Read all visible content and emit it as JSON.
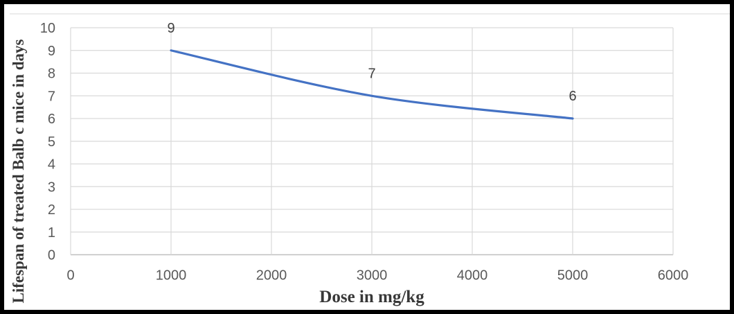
{
  "chart_data": {
    "type": "line",
    "title": "",
    "xlabel": "Dose in mg/kg",
    "ylabel": "Lifespan of treated Balb c mice in days",
    "x": [
      1000,
      3000,
      5000
    ],
    "values": [
      9,
      7,
      6
    ],
    "point_labels": [
      "9",
      "7",
      "6"
    ],
    "xlim": [
      0,
      6000
    ],
    "ylim": [
      0,
      10
    ],
    "x_ticks": [
      0,
      1000,
      2000,
      3000,
      4000,
      5000,
      6000
    ],
    "y_ticks": [
      0,
      1,
      2,
      3,
      4,
      5,
      6,
      7,
      8,
      9,
      10
    ],
    "grid": true,
    "smooth": true,
    "legend": "none"
  },
  "colors": {
    "line": "#4472C4",
    "gridline": "#D9D9D9",
    "axis_line": "#BFBFBF",
    "tick_label": "#595959",
    "data_label": "#404040",
    "axis_title": "#383838",
    "frame_border": "#000000",
    "background": "#ffffff"
  }
}
